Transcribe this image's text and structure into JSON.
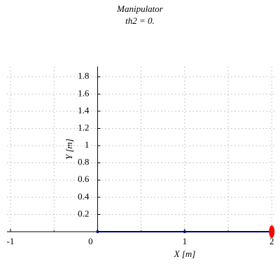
{
  "chart_data": {
    "type": "line",
    "title": "Manipulator",
    "subtitle": "th2 = 0.",
    "xlabel": "X [m]",
    "ylabel": "Y [m]",
    "xlim": [
      -1.04,
      2.03
    ],
    "ylim": [
      0,
      1.92
    ],
    "xticks": [
      -1,
      0,
      1,
      2
    ],
    "xminorticks": [
      -0.5,
      0.5,
      1.5
    ],
    "yticks": [
      0.2,
      0.4,
      0.6,
      0.8,
      1,
      1.2,
      1.4,
      1.6,
      1.8
    ],
    "grid": true,
    "series": [
      {
        "color": "#000080",
        "x": [
          0,
          1,
          2
        ],
        "values": [
          0,
          0,
          0
        ]
      },
      {
        "color": "#ff0000",
        "x": [
          2
        ],
        "values": [
          0
        ]
      }
    ]
  }
}
